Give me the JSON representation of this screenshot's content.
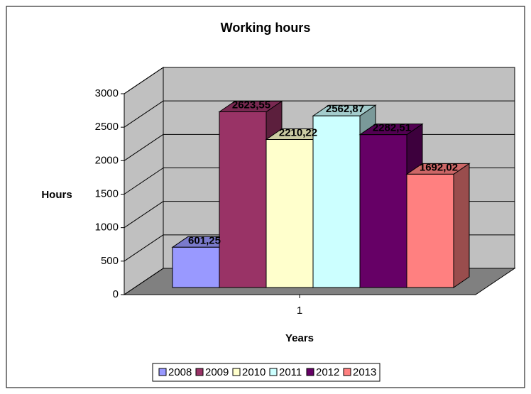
{
  "chart_data": {
    "type": "bar3d",
    "title": "Working hours",
    "xlabel": "Years",
    "ylabel": "Hours",
    "categories": [
      "1"
    ],
    "series": [
      {
        "name": "2008",
        "color": "#9999ff",
        "values": [
          601.25
        ],
        "value_labels": [
          "601,25"
        ]
      },
      {
        "name": "2009",
        "color": "#993366",
        "values": [
          2623.55
        ],
        "value_labels": [
          "2623,55"
        ]
      },
      {
        "name": "2010",
        "color": "#ffffcc",
        "values": [
          2210.22
        ],
        "value_labels": [
          "2210,22"
        ]
      },
      {
        "name": "2011",
        "color": "#ccffff",
        "values": [
          2562.87
        ],
        "value_labels": [
          "2562,87"
        ]
      },
      {
        "name": "2012",
        "color": "#660066",
        "values": [
          2282.51
        ],
        "value_labels": [
          "2282,51"
        ]
      },
      {
        "name": "2013",
        "color": "#ff8080",
        "values": [
          1692.02
        ],
        "value_labels": [
          "1692,02"
        ]
      }
    ],
    "ylim": [
      0,
      3000
    ],
    "yticks": [
      0,
      500,
      1000,
      1500,
      2000,
      2500,
      3000
    ],
    "grid": true,
    "legend": "bottom"
  }
}
